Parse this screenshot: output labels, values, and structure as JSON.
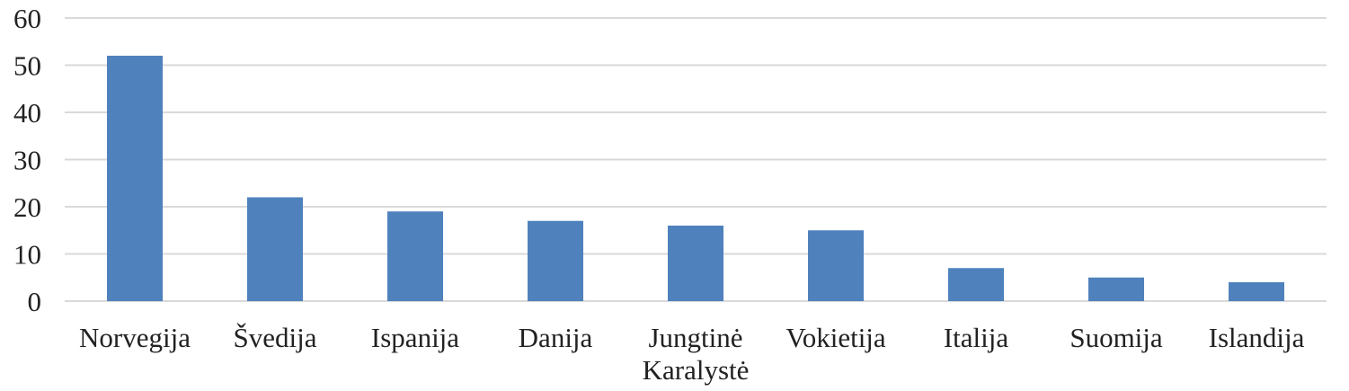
{
  "chart_data": {
    "type": "bar",
    "categories": [
      [
        "Norvegija"
      ],
      [
        "Švedija"
      ],
      [
        "Ispanija"
      ],
      [
        "Danija"
      ],
      [
        "Jungtinė",
        "Karalystė"
      ],
      [
        "Vokietija"
      ],
      [
        "Italija"
      ],
      [
        "Suomija"
      ],
      [
        "Islandija"
      ]
    ],
    "values": [
      52,
      22,
      19,
      17,
      16,
      15,
      7,
      5,
      4
    ],
    "title": "",
    "xlabel": "",
    "ylabel": "",
    "ylim": [
      0,
      60
    ],
    "yticks": [
      0,
      10,
      20,
      30,
      40,
      50,
      60
    ],
    "grid": true,
    "bar_color": "#4f81bd",
    "grid_color": "#d9d9d9"
  }
}
